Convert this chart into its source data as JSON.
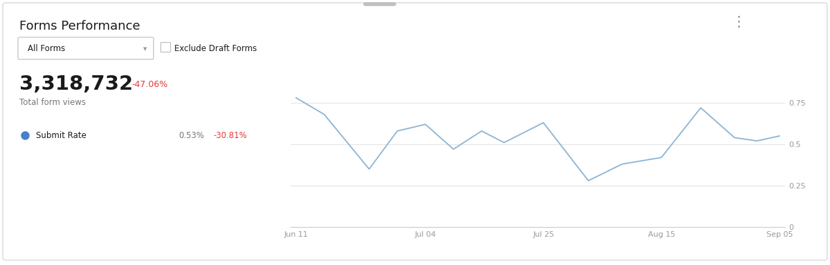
{
  "title": "Forms Performance",
  "dropdown_label": "All Forms",
  "checkbox_label": "Exclude Draft Forms",
  "total_views": "3,318,732",
  "views_change": "-47.06%",
  "submit_rate_label": "Submit Rate",
  "submit_rate_value": "0.53%",
  "submit_rate_change": "-30.81%",
  "background_color": "#ffffff",
  "card_border_color": "#d8d8d8",
  "line_color": "#8ab4d4",
  "grid_color": "#e5e5e5",
  "x_labels": [
    "Jun 11",
    "Jul 04",
    "Jul 25",
    "Aug 15",
    "Sep 05"
  ],
  "x_positions": [
    0,
    23,
    44,
    65,
    86
  ],
  "y_values": [
    0.78,
    0.68,
    0.35,
    0.58,
    0.62,
    0.47,
    0.58,
    0.51,
    0.63,
    0.28,
    0.38,
    0.42,
    0.72,
    0.54,
    0.52,
    0.55
  ],
  "x_data": [
    0,
    5,
    13,
    18,
    23,
    28,
    33,
    37,
    44,
    52,
    58,
    65,
    72,
    78,
    82,
    86
  ],
  "ylim": [
    0,
    1.0
  ],
  "yticks": [
    0,
    0.25,
    0.5,
    0.75
  ],
  "dot_color": "#4a7fcb",
  "title_fontsize": 13,
  "axis_fontsize": 8,
  "red_color": "#e53935",
  "dark_text": "#1a1a1a",
  "gray_text": "#777777",
  "menu_dots_color": "#888888",
  "drag_handle_color": "#c0c0c0"
}
